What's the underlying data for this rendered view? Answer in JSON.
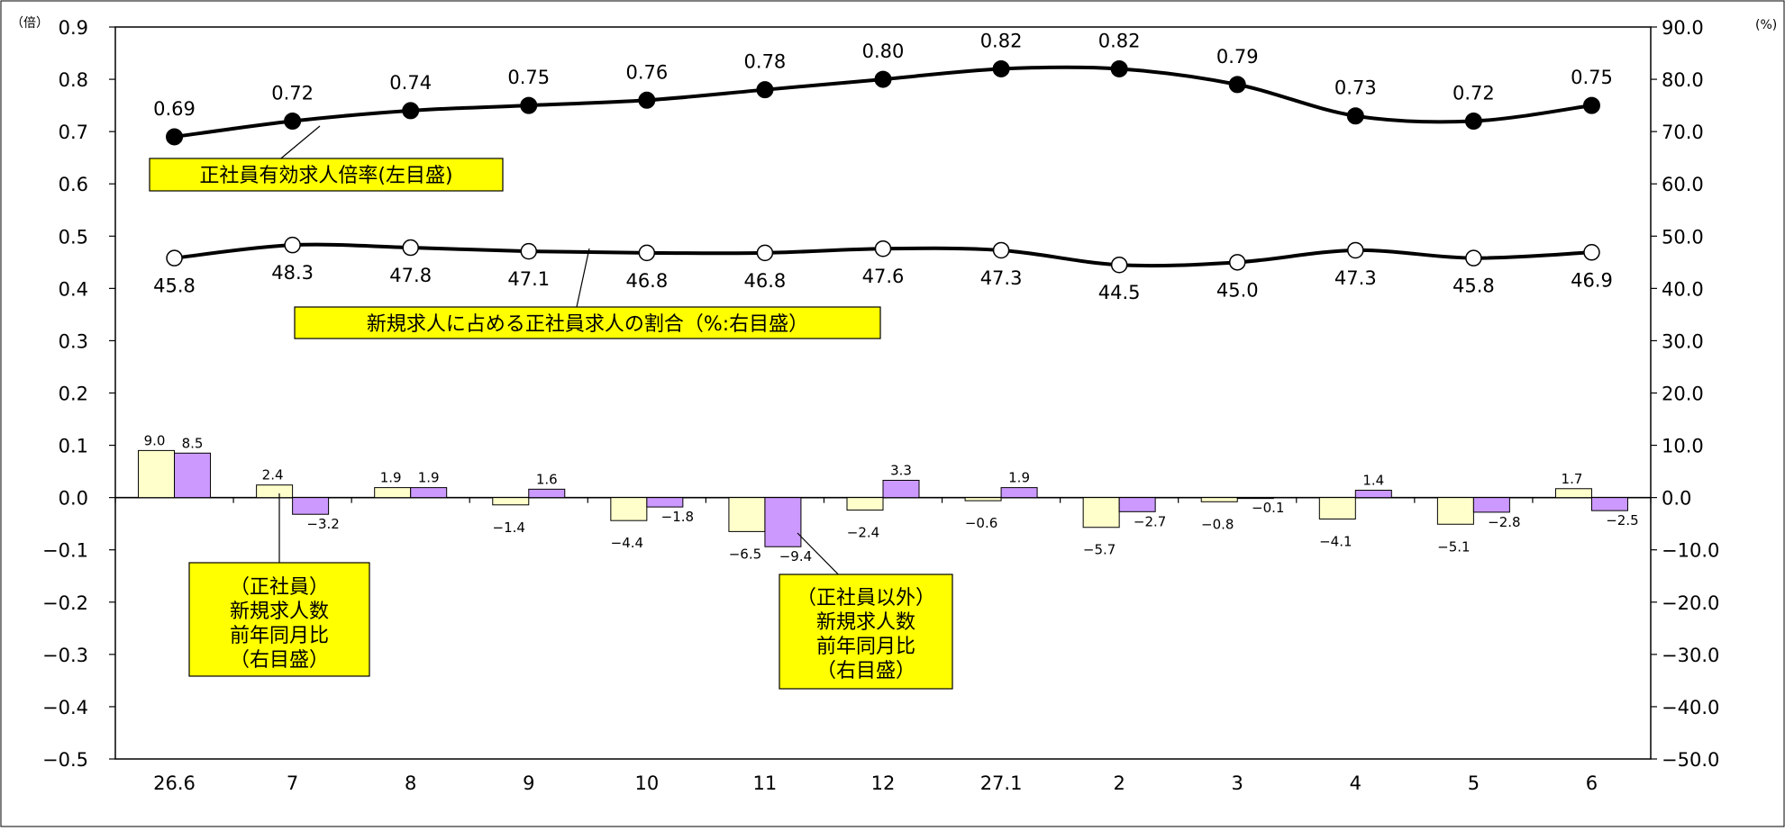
{
  "chart_data": {
    "type": "bar",
    "title": "",
    "categories": [
      "26.6",
      "7",
      "8",
      "9",
      "10",
      "11",
      "12",
      "27.1",
      "2",
      "3",
      "4",
      "5",
      "6"
    ],
    "left_axis": {
      "unit": "（倍）",
      "ylim": [
        -0.5,
        0.9
      ],
      "ticks": [
        "0.9",
        "0.8",
        "0.7",
        "0.6",
        "0.5",
        "0.4",
        "0.3",
        "0.2",
        "0.1",
        "0.0",
        "−0.1",
        "−0.2",
        "−0.3",
        "−0.4",
        "−0.5"
      ]
    },
    "right_axis": {
      "unit": "(%)",
      "ylim": [
        -50,
        90
      ],
      "ticks": [
        "90.0",
        "80.0",
        "70.0",
        "60.0",
        "50.0",
        "40.0",
        "30.0",
        "20.0",
        "10.0",
        "0.0",
        "−10.0",
        "−20.0",
        "−30.0",
        "−40.0",
        "−50.0"
      ]
    },
    "series": [
      {
        "kind": "line",
        "axis": "left",
        "marker": "filled",
        "values": [
          0.69,
          0.72,
          0.74,
          0.75,
          0.76,
          0.78,
          0.8,
          0.82,
          0.82,
          0.79,
          0.73,
          0.72,
          0.75
        ],
        "labels": [
          "0.69",
          "0.72",
          "0.74",
          "0.75",
          "0.76",
          "0.78",
          "0.80",
          "0.82",
          "0.82",
          "0.79",
          "0.73",
          "0.72",
          "0.75"
        ]
      },
      {
        "kind": "line",
        "axis": "right",
        "marker": "open",
        "values": [
          45.8,
          48.3,
          47.8,
          47.1,
          46.8,
          46.8,
          47.6,
          47.3,
          44.5,
          45.0,
          47.3,
          45.8,
          46.9
        ],
        "labels": [
          "45.8",
          "48.3",
          "47.8",
          "47.1",
          "46.8",
          "46.8",
          "47.6",
          "47.3",
          "44.5",
          "45.0",
          "47.3",
          "45.8",
          "46.9"
        ]
      },
      {
        "kind": "bar",
        "axis": "right",
        "color": "#ffffcc",
        "values": [
          9.0,
          2.4,
          1.9,
          -1.4,
          -4.4,
          -6.5,
          -2.4,
          -0.6,
          -5.7,
          -0.8,
          -4.1,
          -5.1,
          1.7
        ],
        "labels": [
          "9.0",
          "2.4",
          "1.9",
          "−1.4",
          "−4.4",
          "−6.5",
          "−2.4",
          "−0.6",
          "−5.7",
          "−0.8",
          "−4.1",
          "−5.1",
          "1.7"
        ]
      },
      {
        "kind": "bar",
        "axis": "right",
        "color": "#cc99ff",
        "values": [
          8.5,
          -3.2,
          1.9,
          1.6,
          -1.8,
          -9.4,
          3.3,
          1.9,
          -2.7,
          -0.1,
          1.4,
          -2.8,
          -2.5
        ],
        "labels": [
          "8.5",
          "−3.2",
          "1.9",
          "1.6",
          "−1.8",
          "−9.4",
          "3.3",
          "1.9",
          "−2.7",
          "−0.1",
          "1.4",
          "−2.8",
          "−2.5"
        ]
      }
    ],
    "annotations": [
      {
        "lines": [
          "正社員有効求人倍率(左目盛)"
        ]
      },
      {
        "lines": [
          "新規求人に占める正社員求人の割合（%:右目盛）"
        ]
      },
      {
        "lines": [
          "（正社員）",
          "新規求人数",
          "前年同月比",
          "（右目盛）"
        ]
      },
      {
        "lines": [
          "（正社員以外）",
          "新規求人数",
          "前年同月比",
          "（右目盛）"
        ]
      }
    ],
    "colors": {
      "box_fill": "#ffff00",
      "line": "#000000",
      "axis": "#000000"
    }
  }
}
